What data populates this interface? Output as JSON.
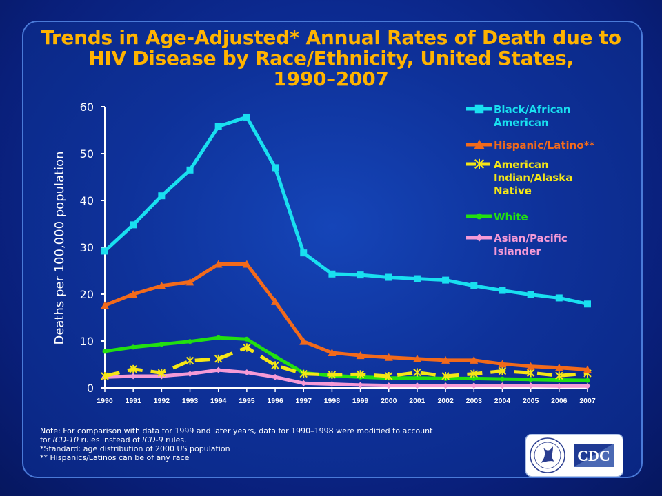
{
  "title": {
    "line1": "Trends in Age-Adjusted* Annual Rates of Death due to",
    "line2": "HIV Disease by Race/Ethnicity, United States,",
    "line3": "1990–2007"
  },
  "notes": {
    "line1": "Note: For comparison with data for 1999 and later years, data for 1990–1998 were modified to account",
    "line2_a": "for ",
    "line2_b": "ICD-10",
    "line2_c": " rules instead of ",
    "line2_d": "ICD-9",
    "line2_e": " rules.",
    "line3": "*Standard: age distribution of 2000 US population",
    "line4": "** Hispanics/Latinos can be of any race"
  },
  "logo": {
    "text": "CDC",
    "icon": "hhs-eagle-seal-icon"
  },
  "chart_data": {
    "type": "line",
    "ylabel": "Deaths per 100,000 population",
    "xlabel": "",
    "ylim": [
      0,
      60
    ],
    "yticks": [
      0,
      10,
      20,
      30,
      40,
      50,
      60
    ],
    "grid": false,
    "legend_position": "right",
    "x": [
      "1990",
      "1991",
      "1992",
      "1993",
      "1994",
      "1995",
      "1996",
      "1997",
      "1998",
      "1999",
      "2000",
      "2001",
      "2002",
      "2003",
      "2004",
      "2005",
      "2006",
      "2007"
    ],
    "series": [
      {
        "name": "Black/African American",
        "legend_lines": [
          "Black/African",
          "American"
        ],
        "color": "#19e0f0",
        "marker": "square",
        "dash": false,
        "values": [
          29.2,
          34.8,
          41.0,
          46.5,
          55.8,
          57.8,
          47.0,
          28.8,
          24.3,
          24.1,
          23.6,
          23.3,
          23.0,
          21.8,
          20.8,
          19.9,
          19.2,
          17.9
        ]
      },
      {
        "name": "Hispanic/Latino**",
        "legend_lines": [
          "Hispanic/Latino**"
        ],
        "color": "#f26a1b",
        "marker": "triangle",
        "dash": false,
        "values": [
          17.6,
          20.0,
          21.8,
          22.6,
          26.4,
          26.4,
          18.4,
          9.9,
          7.5,
          6.9,
          6.5,
          6.2,
          5.9,
          5.9,
          5.1,
          4.6,
          4.3,
          3.9
        ]
      },
      {
        "name": "American Indian/Alaska Native",
        "legend_lines": [
          "American",
          "Indian/Alaska",
          "Native"
        ],
        "color": "#f5e616",
        "marker": "star",
        "dash": true,
        "values": [
          2.5,
          4.0,
          3.2,
          5.8,
          6.2,
          8.6,
          4.8,
          3.0,
          2.8,
          2.9,
          2.5,
          3.3,
          2.5,
          3.0,
          3.6,
          3.2,
          2.6,
          3.1
        ]
      },
      {
        "name": "White",
        "legend_lines": [
          "White"
        ],
        "color": "#22e010",
        "marker": "circle",
        "dash": false,
        "values": [
          7.8,
          8.7,
          9.3,
          9.9,
          10.7,
          10.4,
          6.7,
          3.2,
          2.6,
          2.3,
          2.1,
          2.1,
          2.0,
          2.0,
          1.9,
          1.8,
          1.7,
          1.6
        ]
      },
      {
        "name": "Asian/Pacific Islander",
        "legend_lines": [
          "Asian/Pacific",
          "Islander"
        ],
        "color": "#f59ad6",
        "marker": "diamond",
        "dash": false,
        "values": [
          2.3,
          2.5,
          2.5,
          3.0,
          3.8,
          3.3,
          2.3,
          1.0,
          0.8,
          0.6,
          0.5,
          0.5,
          0.5,
          0.5,
          0.5,
          0.5,
          0.4,
          0.4
        ]
      }
    ]
  }
}
